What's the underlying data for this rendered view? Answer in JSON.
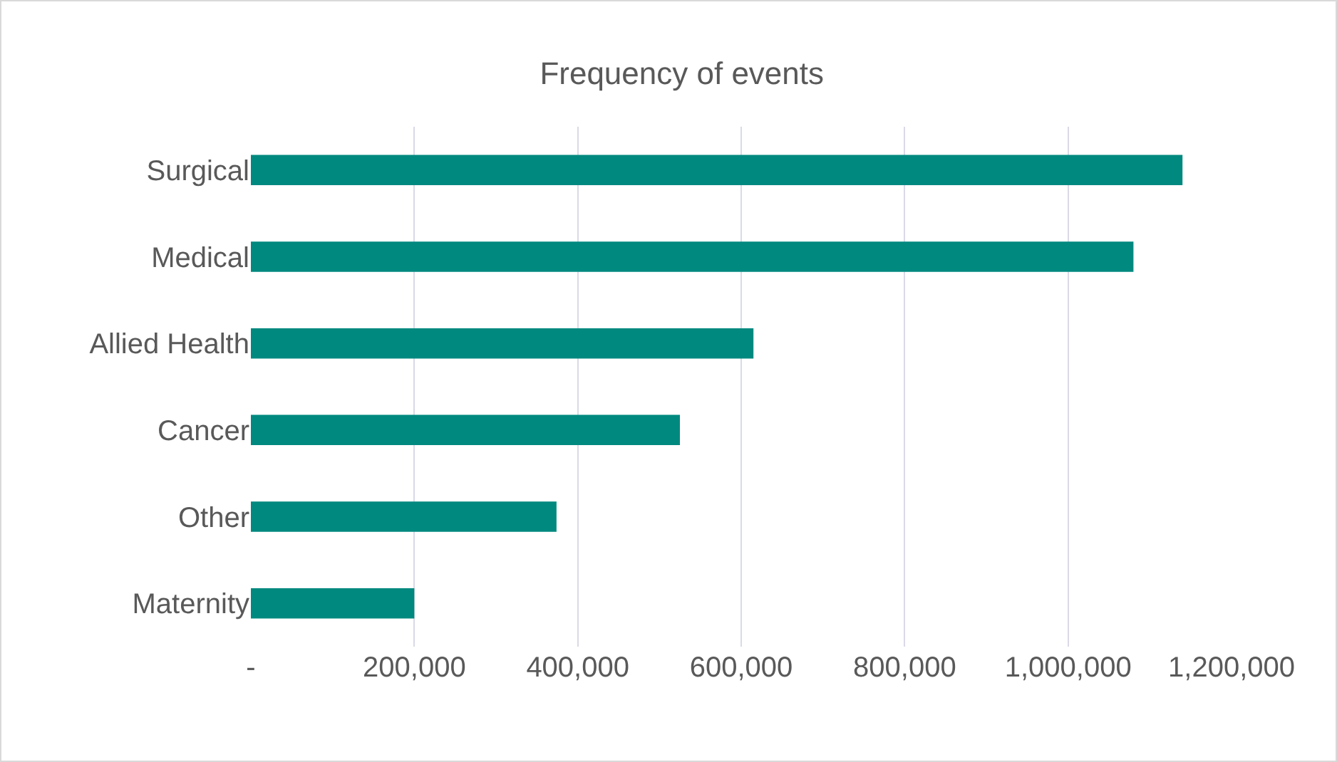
{
  "chart_data": {
    "type": "bar",
    "orientation": "horizontal",
    "title": "Frequency of events",
    "categories": [
      "Surgical",
      "Medical",
      "Allied Health",
      "Cancer",
      "Other",
      "Maternity"
    ],
    "values": [
      1140000,
      1080000,
      615000,
      525000,
      374000,
      200000
    ],
    "color": "#00897f",
    "xlim": [
      0,
      1200000
    ],
    "xticks": [
      {
        "value": 0,
        "label": "-"
      },
      {
        "value": 200000,
        "label": "200,000"
      },
      {
        "value": 400000,
        "label": "400,000"
      },
      {
        "value": 600000,
        "label": "600,000"
      },
      {
        "value": 800000,
        "label": "800,000"
      },
      {
        "value": 1000000,
        "label": "1,000,000"
      },
      {
        "value": 1200000,
        "label": "1,200,000"
      }
    ],
    "grid": "x",
    "legend": false
  }
}
